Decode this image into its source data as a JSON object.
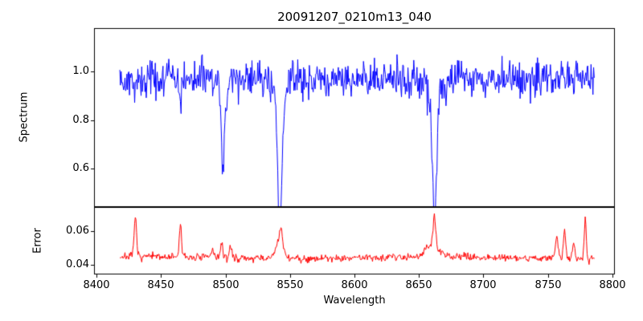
{
  "title": "20091207_0210m13_040",
  "xlabel": "Wavelength",
  "ylabel_top": "Spectrum",
  "ylabel_bottom": "Error",
  "x_tick_labels": [
    "8400",
    "8450",
    "8500",
    "8550",
    "8600",
    "8650",
    "8700",
    "8750",
    "8800"
  ],
  "y_tick_labels_top": [
    "0.6",
    "0.8",
    "1.0"
  ],
  "y_tick_labels_bottom": [
    "0.04",
    "0.06"
  ],
  "colors": {
    "spectrum_line": "#0000ff",
    "error_line": "#ff0000",
    "frame": "#000000"
  },
  "chart_data": [
    {
      "type": "line",
      "panel": "spectrum",
      "series_name": "spectrum",
      "title": "20091207_0210m13_040",
      "ylabel": "Spectrum",
      "color": "#0000ff",
      "xlim": [
        8398,
        8802
      ],
      "ylim": [
        0.44,
        1.18
      ],
      "yticks": [
        0.6,
        0.8,
        1.0
      ],
      "x_data_range": [
        8418,
        8786
      ],
      "x_step": 0.5,
      "continuum": 0.97,
      "noise_amp": 0.13,
      "absorption_lines": [
        {
          "center": 8429.0,
          "depth": 0.07,
          "width": 0.9
        },
        {
          "center": 8465.0,
          "depth": 0.08,
          "width": 0.9
        },
        {
          "center": 8498.0,
          "depth": 0.33,
          "width": 1.3,
          "wing_depth": 0.05,
          "wing_width": 3.0
        },
        {
          "center": 8542.1,
          "depth": 0.5,
          "width": 1.6,
          "wing_depth": 0.1,
          "wing_width": 4.5
        },
        {
          "center": 8662.1,
          "depth": 0.49,
          "width": 1.6,
          "wing_depth": 0.1,
          "wing_width": 4.0
        }
      ],
      "grid": false,
      "legend": false,
      "seed": 42
    },
    {
      "type": "line",
      "panel": "error",
      "series_name": "error",
      "ylabel": "Error",
      "xlabel": "Wavelength",
      "color": "#ff0000",
      "xlim": [
        8398,
        8802
      ],
      "ylim": [
        0.0343,
        0.0743
      ],
      "yticks": [
        0.04,
        0.06
      ],
      "xticks": [
        8400,
        8450,
        8500,
        8550,
        8600,
        8650,
        8700,
        8750,
        8800
      ],
      "x_data_range": [
        8418,
        8786
      ],
      "x_step": 0.5,
      "baseline": 0.0443,
      "noise_amp": 0.004,
      "spikes": [
        {
          "center": 8430,
          "height": 0.0235,
          "width": 0.9
        },
        {
          "center": 8465,
          "height": 0.0205,
          "width": 0.8
        },
        {
          "center": 8490,
          "height": 0.005,
          "width": 1.2
        },
        {
          "center": 8497,
          "height": 0.0085,
          "width": 0.9
        },
        {
          "center": 8504,
          "height": 0.0075,
          "width": 0.9
        },
        {
          "center": 8542,
          "height": 0.0105,
          "width": 3.0
        },
        {
          "center": 8543,
          "height": 0.008,
          "width": 0.9
        },
        {
          "center": 8660,
          "height": 0.007,
          "width": 5.0
        },
        {
          "center": 8662,
          "height": 0.017,
          "width": 1.0
        },
        {
          "center": 8757,
          "height": 0.0125,
          "width": 1.1
        },
        {
          "center": 8763,
          "height": 0.0155,
          "width": 0.9
        },
        {
          "center": 8770,
          "height": 0.008,
          "width": 1.0
        },
        {
          "center": 8779,
          "height": 0.0235,
          "width": 0.8
        }
      ],
      "grid": false,
      "legend": false,
      "seed": 7
    }
  ]
}
